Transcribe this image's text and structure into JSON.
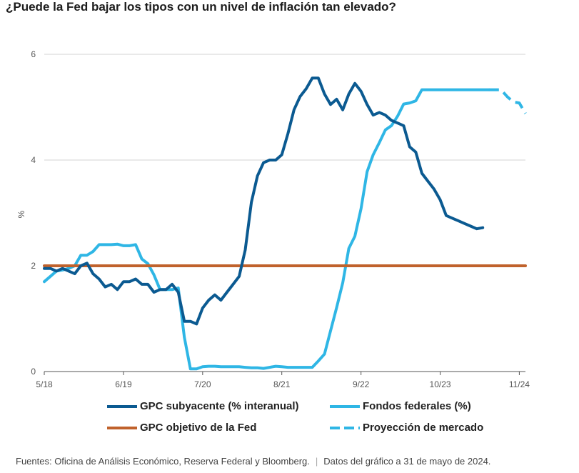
{
  "title": "¿Puede la Fed bajar los tipos con un nivel de inflación tan elevado?",
  "footer": {
    "sources": "Fuentes: Oficina de Análisis Económico, Reserva Federal y Bloomberg.",
    "date_note": "Datos del gráfico a 31 de mayo de 2024."
  },
  "chart_data": {
    "type": "line",
    "ylabel": "%",
    "ylim": [
      0,
      6
    ],
    "yticks": [
      0,
      2,
      4,
      6
    ],
    "xlim": [
      2018.333,
      2024.917
    ],
    "xticks": [
      {
        "label": "5/18",
        "x": 2018.333
      },
      {
        "label": "6/19",
        "x": 2019.417
      },
      {
        "label": "7/20",
        "x": 2020.5
      },
      {
        "label": "8/21",
        "x": 2021.583
      },
      {
        "label": "9/22",
        "x": 2022.667
      },
      {
        "label": "10/23",
        "x": 2023.75
      },
      {
        "label": "11/24",
        "x": 2024.833
      }
    ],
    "grid": true,
    "legend_position": "bottom",
    "series": [
      {
        "name": "GPC subyacente (% interanual)",
        "key": "core",
        "color": "#0b5a91",
        "style": "solid",
        "x": [
          2018.333,
          2018.417,
          2018.5,
          2018.583,
          2018.667,
          2018.75,
          2018.833,
          2018.917,
          2019.0,
          2019.083,
          2019.167,
          2019.25,
          2019.333,
          2019.417,
          2019.5,
          2019.583,
          2019.667,
          2019.75,
          2019.833,
          2019.917,
          2020.0,
          2020.083,
          2020.167,
          2020.25,
          2020.333,
          2020.417,
          2020.5,
          2020.583,
          2020.667,
          2020.75,
          2020.833,
          2020.917,
          2021.0,
          2021.083,
          2021.167,
          2021.25,
          2021.333,
          2021.417,
          2021.5,
          2021.583,
          2021.667,
          2021.75,
          2021.833,
          2021.917,
          2022.0,
          2022.083,
          2022.167,
          2022.25,
          2022.333,
          2022.417,
          2022.5,
          2022.583,
          2022.667,
          2022.75,
          2022.833,
          2022.917,
          2023.0,
          2023.083,
          2023.167,
          2023.25,
          2023.333,
          2023.417,
          2023.5,
          2023.583,
          2023.667,
          2023.75,
          2023.833,
          2023.917,
          2024.0,
          2024.083,
          2024.167,
          2024.25,
          2024.333
        ],
        "values": [
          1.95,
          1.95,
          1.9,
          1.95,
          1.9,
          1.85,
          2.0,
          2.05,
          1.85,
          1.75,
          1.6,
          1.65,
          1.55,
          1.7,
          1.7,
          1.75,
          1.65,
          1.65,
          1.5,
          1.55,
          1.55,
          1.65,
          1.5,
          0.95,
          0.95,
          0.9,
          1.2,
          1.35,
          1.45,
          1.35,
          1.5,
          1.65,
          1.8,
          2.3,
          3.2,
          3.7,
          3.95,
          4.0,
          4.0,
          4.1,
          4.5,
          4.95,
          5.2,
          5.35,
          5.55,
          5.55,
          5.25,
          5.05,
          5.15,
          4.95,
          5.25,
          5.45,
          5.3,
          5.05,
          4.85,
          4.9,
          4.85,
          4.75,
          4.7,
          4.65,
          4.25,
          4.15,
          3.75,
          3.6,
          3.45,
          3.25,
          2.95,
          2.9,
          2.85,
          2.8,
          2.75,
          2.7,
          2.72
        ]
      },
      {
        "name": "Fondos federales (%)",
        "key": "fed",
        "color": "#2fb6e5",
        "style": "solid",
        "x": [
          2018.333,
          2018.417,
          2018.5,
          2018.583,
          2018.667,
          2018.75,
          2018.833,
          2018.917,
          2019.0,
          2019.083,
          2019.167,
          2019.25,
          2019.333,
          2019.417,
          2019.5,
          2019.583,
          2019.667,
          2019.75,
          2019.833,
          2019.917,
          2020.0,
          2020.083,
          2020.167,
          2020.25,
          2020.333,
          2020.417,
          2020.5,
          2020.583,
          2020.667,
          2020.75,
          2020.833,
          2020.917,
          2021.0,
          2021.083,
          2021.167,
          2021.25,
          2021.333,
          2021.417,
          2021.5,
          2021.583,
          2021.667,
          2021.75,
          2021.833,
          2021.917,
          2022.0,
          2022.083,
          2022.167,
          2022.25,
          2022.333,
          2022.417,
          2022.5,
          2022.583,
          2022.667,
          2022.75,
          2022.833,
          2022.917,
          2023.0,
          2023.083,
          2023.167,
          2023.25,
          2023.333,
          2023.417,
          2023.5,
          2023.583,
          2023.667,
          2023.75,
          2023.833,
          2023.917,
          2024.0,
          2024.083,
          2024.167,
          2024.25,
          2024.333,
          2024.417
        ],
        "values": [
          1.7,
          1.8,
          1.9,
          1.92,
          1.95,
          2.0,
          2.2,
          2.2,
          2.27,
          2.4,
          2.4,
          2.4,
          2.41,
          2.38,
          2.38,
          2.4,
          2.13,
          2.04,
          1.83,
          1.55,
          1.55,
          1.55,
          1.58,
          0.65,
          0.05,
          0.05,
          0.09,
          0.1,
          0.1,
          0.09,
          0.09,
          0.09,
          0.09,
          0.08,
          0.07,
          0.07,
          0.06,
          0.08,
          0.1,
          0.09,
          0.08,
          0.08,
          0.08,
          0.08,
          0.08,
          0.2,
          0.33,
          0.77,
          1.21,
          1.68,
          2.33,
          2.56,
          3.08,
          3.78,
          4.1,
          4.33,
          4.57,
          4.65,
          4.83,
          5.06,
          5.08,
          5.12,
          5.33,
          5.33,
          5.33,
          5.33,
          5.33,
          5.33,
          5.33,
          5.33,
          5.33,
          5.33,
          5.33,
          5.33
        ]
      },
      {
        "name": "GPC objetivo de la Fed",
        "key": "target",
        "color": "#c0622c",
        "style": "solid",
        "x": [
          2018.333,
          2024.917
        ],
        "values": [
          2.0,
          2.0
        ]
      },
      {
        "name": "Proyección de mercado",
        "key": "proj",
        "color": "#2fb6e5",
        "style": "dashed",
        "x": [
          2024.417,
          2024.5,
          2024.583,
          2024.667,
          2024.75,
          2024.833,
          2024.917
        ],
        "values": [
          5.33,
          5.33,
          5.33,
          5.2,
          5.1,
          5.08,
          4.88
        ]
      }
    ]
  }
}
